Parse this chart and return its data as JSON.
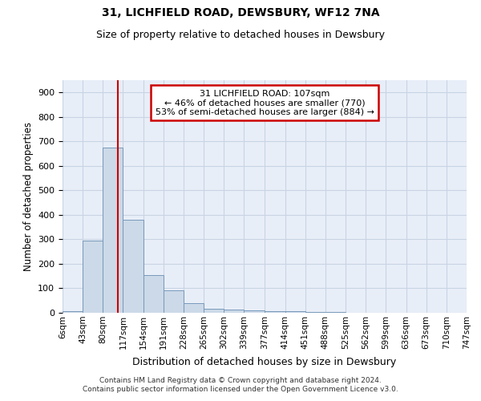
{
  "title": "31, LICHFIELD ROAD, DEWSBURY, WF12 7NA",
  "subtitle": "Size of property relative to detached houses in Dewsbury",
  "xlabel": "Distribution of detached houses by size in Dewsbury",
  "ylabel": "Number of detached properties",
  "bin_edges": [
    6,
    43,
    80,
    117,
    154,
    191,
    228,
    265,
    302,
    339,
    377,
    414,
    451,
    488,
    525,
    562,
    599,
    636,
    673,
    710,
    747
  ],
  "bar_labels": [
    "6sqm",
    "43sqm",
    "80sqm",
    "117sqm",
    "154sqm",
    "191sqm",
    "228sqm",
    "265sqm",
    "302sqm",
    "339sqm",
    "377sqm",
    "414sqm",
    "451sqm",
    "488sqm",
    "525sqm",
    "562sqm",
    "599sqm",
    "636sqm",
    "673sqm",
    "710sqm",
    "747sqm"
  ],
  "bar_heights": [
    8,
    295,
    675,
    380,
    155,
    92,
    38,
    15,
    12,
    10,
    8,
    5,
    3,
    2,
    1,
    1,
    1,
    0,
    0,
    0
  ],
  "bar_color": "#ccd9e8",
  "bar_edge_color": "#7799bb",
  "property_value": 107,
  "property_label": "31 LICHFIELD ROAD: 107sqm",
  "annotation_line1": "← 46% of detached houses are smaller (770)",
  "annotation_line2": "53% of semi-detached houses are larger (884) →",
  "annotation_box_color": "#ffffff",
  "annotation_box_edge": "#cc0000",
  "vline_color": "#cc0000",
  "grid_color": "#c8d4e4",
  "background_color": "#e8eef8",
  "ylim": [
    0,
    950
  ],
  "yticks": [
    0,
    100,
    200,
    300,
    400,
    500,
    600,
    700,
    800,
    900
  ],
  "footer_line1": "Contains HM Land Registry data © Crown copyright and database right 2024.",
  "footer_line2": "Contains public sector information licensed under the Open Government Licence v3.0."
}
